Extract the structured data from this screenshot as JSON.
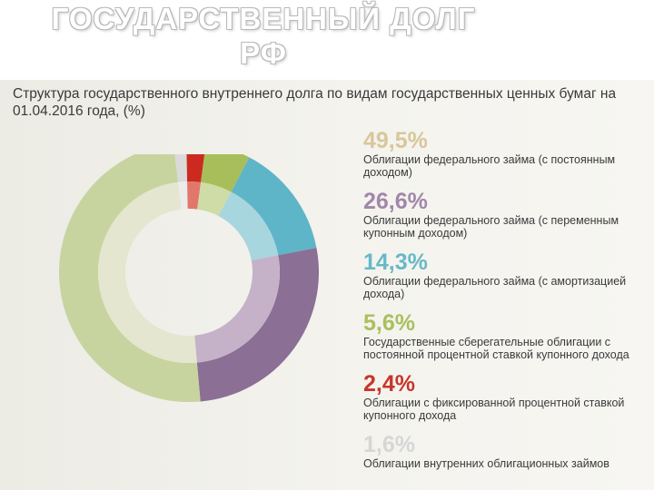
{
  "page": {
    "title_line1": "ГОСУДАРСТВЕННЫЙ ДОЛГ",
    "title_line2": "РФ"
  },
  "chart_data": {
    "type": "pie",
    "title": "Структура государственного внутреннего долга по видам государственных ценных бумаг на 01.04.2016 года, (%)",
    "slices": [
      {
        "value": 49.5,
        "label": "49,5%",
        "description": "Облигации федерального займа (с постоянным доходом)",
        "color": "#c8d4a0",
        "inner_color": "#e4e6cf",
        "text_color": "#d8c79a"
      },
      {
        "value": 26.6,
        "label": "26,6%",
        "description": "Облигации федерального займа (с переменным купонным доходом)",
        "color": "#8b6f95",
        "inner_color": "#c5b2c9",
        "text_color": "#a386ab"
      },
      {
        "value": 14.3,
        "label": "14,3%",
        "description": "Облигации федерального займа (с амортизацией дохода)",
        "color": "#5fb5c8",
        "inner_color": "#a7d6de",
        "text_color": "#67b8c8"
      },
      {
        "value": 5.6,
        "label": "5,6%",
        "description": "Государственные сберегательные облигации с постоянной процентной ставкой купонного дохода",
        "color": "#a8be5a",
        "inner_color": "#cfdca6",
        "text_color": "#a9c05e"
      },
      {
        "value": 2.4,
        "label": "2,4%",
        "description": "Облигации с фиксированной процентной ставкой купонного дохода",
        "color": "#cc2a20",
        "inner_color": "#e1776b",
        "text_color": "#c8352a"
      },
      {
        "value": 1.6,
        "label": "1,6%",
        "description": "Облигации внутренних облигационных займов",
        "color": "#dadada",
        "inner_color": "#ececec",
        "text_color": "#d6d6d6"
      }
    ]
  }
}
